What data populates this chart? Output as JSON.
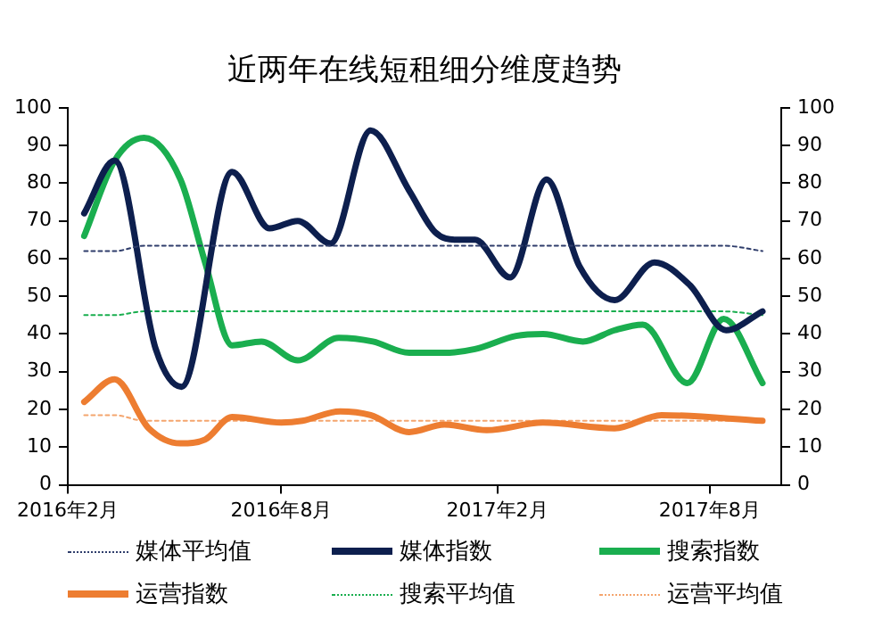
{
  "chart_data": {
    "type": "line",
    "title": "近两年在线短租细分维度趋势",
    "xlim": [
      "2016-02",
      "2017-10"
    ],
    "xticks": [
      {
        "value": "2016-02",
        "label": "2016年2月"
      },
      {
        "value": "2016-08",
        "label": "2016年8月"
      },
      {
        "value": "2017-02",
        "label": "2017年2月"
      },
      {
        "value": "2017-08",
        "label": "2017年8月"
      }
    ],
    "ylim": [
      0,
      100
    ],
    "yticks": [
      0,
      10,
      20,
      30,
      40,
      50,
      60,
      70,
      80,
      90,
      100
    ],
    "y2lim": [
      0,
      100
    ],
    "y2ticks": [
      0,
      10,
      20,
      30,
      40,
      50,
      60,
      70,
      80,
      90,
      100
    ],
    "grid": false,
    "legend": "bottom",
    "marker": "none",
    "series": [
      {
        "name": "媒体平均值",
        "color": "#2f3d6b",
        "line_style": "dotted",
        "x": [
          "2016-02-15",
          "2016-03-12",
          "2016-04-06",
          "2017-08-13",
          "2017-09-15"
        ],
        "values": [
          62,
          62,
          63.4,
          63.4,
          62
        ]
      },
      {
        "name": "媒体指数",
        "color": "#0d1f4e",
        "line_style": "solid",
        "x": [
          "2016-02-15",
          "2016-03-12",
          "2016-04-16",
          "2016-05-08",
          "2016-06-20",
          "2016-07-22",
          "2016-08-15",
          "2016-09-12",
          "2016-10-16",
          "2016-11-18",
          "2016-12-10",
          "2016-12-28",
          "2017-01-13",
          "2017-02-12",
          "2017-03-15",
          "2017-04-12",
          "2017-05-12",
          "2017-06-15",
          "2017-07-15",
          "2017-08-15",
          "2017-09-15"
        ],
        "values": [
          72,
          86,
          36,
          26,
          83,
          68,
          70,
          64,
          94,
          78,
          67,
          65,
          65,
          55,
          81,
          58,
          49,
          59,
          53,
          41,
          46
        ]
      },
      {
        "name": "搜索指数",
        "color": "#1aae4f",
        "line_style": "solid",
        "x": [
          "2016-02-15",
          "2016-03-12",
          "2016-04-06",
          "2016-05-07",
          "2016-05-28",
          "2016-06-20",
          "2016-07-15",
          "2016-08-15",
          "2016-09-19",
          "2016-10-18",
          "2016-11-18",
          "2016-12-18",
          "2017-01-13",
          "2017-02-17",
          "2017-03-12",
          "2017-04-15",
          "2017-05-12",
          "2017-06-05",
          "2017-07-13",
          "2017-08-13",
          "2017-09-15"
        ],
        "values": [
          66,
          86,
          92,
          81,
          59,
          37,
          38,
          33,
          39,
          38,
          35,
          35,
          36,
          39.5,
          40,
          38,
          41,
          42.5,
          27,
          44,
          27
        ]
      },
      {
        "name": "运营指数",
        "color": "#ed7d31",
        "line_style": "solid",
        "x": [
          "2016-02-15",
          "2016-03-12",
          "2016-04-10",
          "2016-05-07",
          "2016-05-28",
          "2016-06-20",
          "2016-08-01",
          "2016-08-19",
          "2016-09-20",
          "2016-10-16",
          "2016-11-18",
          "2016-12-18",
          "2017-01-23",
          "2017-03-12",
          "2017-05-12",
          "2017-06-21",
          "2017-09-15"
        ],
        "values": [
          22,
          28,
          15,
          11,
          12,
          18,
          16.5,
          17,
          19.5,
          18.5,
          14,
          16,
          14.5,
          16.5,
          15,
          18.5,
          17
        ]
      },
      {
        "name": "搜索平均值",
        "color": "#1aae4f",
        "line_style": "dotted",
        "x": [
          "2016-02-15",
          "2016-03-12",
          "2016-04-06",
          "2017-08-13",
          "2017-09-15"
        ],
        "values": [
          45,
          45,
          46,
          46,
          45
        ]
      },
      {
        "name": "运营平均值",
        "color": "#f4a56e",
        "line_style": "dotted",
        "x": [
          "2016-02-15",
          "2016-03-12",
          "2016-04-06",
          "2017-08-13",
          "2017-09-15"
        ],
        "values": [
          18.5,
          18.5,
          17,
          17,
          17
        ]
      }
    ]
  }
}
